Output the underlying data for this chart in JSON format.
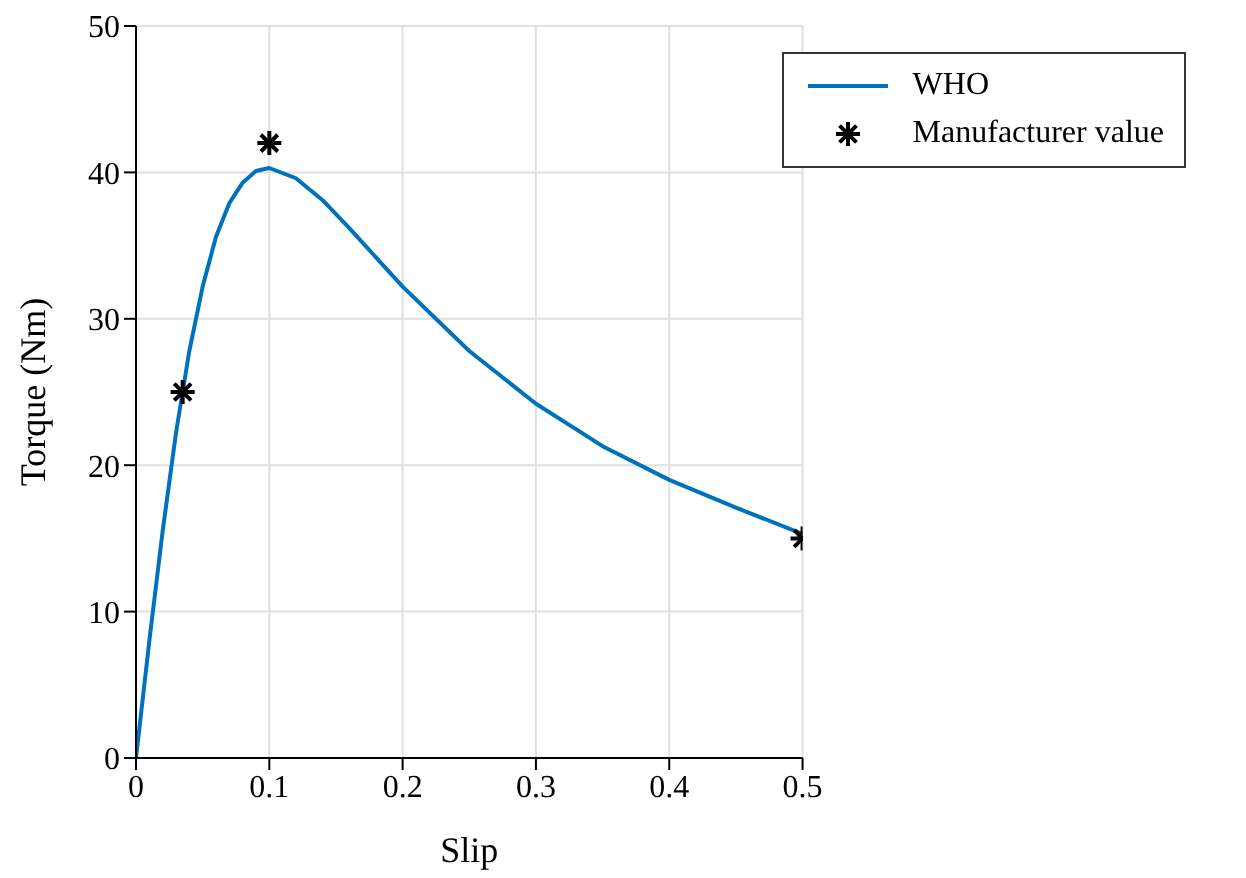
{
  "chart_data": {
    "type": "line",
    "xlabel": "Slip",
    "ylabel": "Torque (Nm)",
    "xlim": [
      0,
      0.5
    ],
    "xticks": [
      0,
      0.1,
      0.2,
      0.3,
      0.4,
      0.5
    ],
    "ylim": [
      0,
      50
    ],
    "yticks": [
      0,
      10,
      20,
      30,
      40,
      50
    ],
    "grid": true,
    "legend": "top right",
    "series": [
      {
        "name": "WHO",
        "color": "#0072bd",
        "marker": "none",
        "x": [
          0,
          0.01,
          0.02,
          0.03,
          0.04,
          0.05,
          0.06,
          0.07,
          0.08,
          0.09,
          0.1,
          0.12,
          0.14,
          0.16,
          0.18,
          0.2,
          0.25,
          0.3,
          0.35,
          0.4,
          0.45,
          0.5
        ],
        "values": [
          0,
          8.0,
          15.5,
          22.2,
          27.8,
          32.2,
          35.6,
          37.9,
          39.3,
          40.1,
          40.3,
          39.6,
          38.1,
          36.2,
          34.2,
          32.2,
          27.8,
          24.2,
          21.3,
          19.0,
          17.1,
          15.3
        ]
      },
      {
        "name": "Manufacturer value",
        "type": "scatter",
        "color": "#000000",
        "marker": "cross",
        "x": [
          0.035,
          0.1,
          0.5
        ],
        "values": [
          25,
          42,
          15
        ]
      }
    ]
  }
}
